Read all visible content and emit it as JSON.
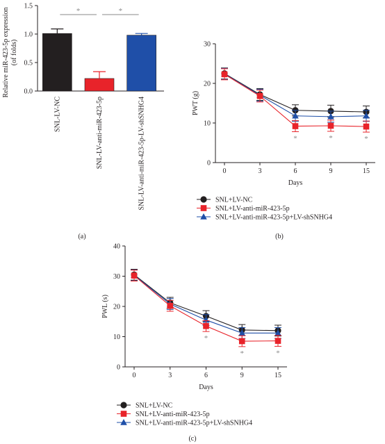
{
  "chart_data": [
    {
      "panel": "(a)",
      "type": "bar",
      "ylabel_lines": [
        "Relative miR-423-5p expression",
        "(of folds)"
      ],
      "ylim": [
        0,
        1.5
      ],
      "yticks": [
        "0.0",
        "0.5",
        "1.0",
        "1.5"
      ],
      "categories": [
        "SNL-LV-NC",
        "SNL-LV-anti-miR-423-5p",
        "SNL-LV-anti-miR-423-5p-LV-shSNHG4"
      ],
      "values": [
        1.01,
        0.22,
        0.98
      ],
      "errors": [
        0.08,
        0.12,
        0.03
      ],
      "colors": [
        "#231f20",
        "#e8232a",
        "#1f4fa8"
      ],
      "significance": [
        {
          "from": 0,
          "to": 1,
          "label": "*"
        },
        {
          "from": 1,
          "to": 2,
          "label": "*"
        }
      ]
    },
    {
      "panel": "(b)",
      "type": "line",
      "ylabel": "PWT (g)",
      "xlabel": "Days",
      "x": [
        0,
        3,
        6,
        9,
        15
      ],
      "xticks": [
        "0",
        "3",
        "6",
        "9",
        "15"
      ],
      "ylim": [
        0,
        30
      ],
      "yticks": [
        "0",
        "10",
        "20",
        "30"
      ],
      "series": [
        {
          "name": "SNL+LV-NC",
          "values": [
            22.5,
            17.2,
            13.2,
            13.0,
            12.8
          ],
          "errors": [
            1.4,
            1.5,
            1.4,
            1.5,
            1.5
          ],
          "color": "#231f20",
          "marker": "circle"
        },
        {
          "name": "SNL+LV-anti-miR-423-5p",
          "values": [
            22.3,
            16.8,
            9.2,
            9.3,
            9.1
          ],
          "errors": [
            1.4,
            1.5,
            1.4,
            1.4,
            1.4
          ],
          "color": "#e8232a",
          "marker": "square"
        },
        {
          "name": "SNL+LV-anti-miR-423-5p+LV-shSNHG4",
          "values": [
            22.4,
            17.0,
            11.8,
            11.6,
            11.8
          ],
          "errors": [
            1.4,
            1.5,
            1.4,
            1.4,
            1.4
          ],
          "color": "#1f4fa8",
          "marker": "triangle"
        }
      ],
      "significance": [
        {
          "x": 6,
          "label": "*"
        },
        {
          "x": 9,
          "label": "*"
        },
        {
          "x": 15,
          "label": "*"
        }
      ]
    },
    {
      "panel": "(c)",
      "type": "line",
      "ylabel": "PWL (s)",
      "xlabel": "Days",
      "x": [
        0,
        3,
        6,
        9,
        15
      ],
      "xticks": [
        "0",
        "3",
        "6",
        "9",
        "15"
      ],
      "ylim": [
        0,
        40
      ],
      "yticks": [
        "0",
        "10",
        "20",
        "30",
        "40"
      ],
      "series": [
        {
          "name": "SNL+LV-NC",
          "values": [
            30.5,
            21.2,
            16.8,
            12.2,
            12.0
          ],
          "errors": [
            1.8,
            1.8,
            1.8,
            1.8,
            1.8
          ],
          "color": "#231f20",
          "marker": "circle"
        },
        {
          "name": "SNL+LV-anti-miR-423-5p",
          "values": [
            30.2,
            20.2,
            13.5,
            8.5,
            8.6
          ],
          "errors": [
            1.8,
            1.8,
            1.8,
            1.8,
            1.8
          ],
          "color": "#e8232a",
          "marker": "square"
        },
        {
          "name": "SNL+LV-anti-miR-423-5p+LV-shSNHG4",
          "values": [
            30.3,
            20.8,
            15.5,
            11.2,
            11.2
          ],
          "errors": [
            1.8,
            1.8,
            1.8,
            1.8,
            1.8
          ],
          "color": "#1f4fa8",
          "marker": "triangle"
        }
      ],
      "significance": [
        {
          "x": 6,
          "label": "*"
        },
        {
          "x": 9,
          "label": "*"
        },
        {
          "x": 15,
          "label": "*"
        }
      ]
    }
  ]
}
